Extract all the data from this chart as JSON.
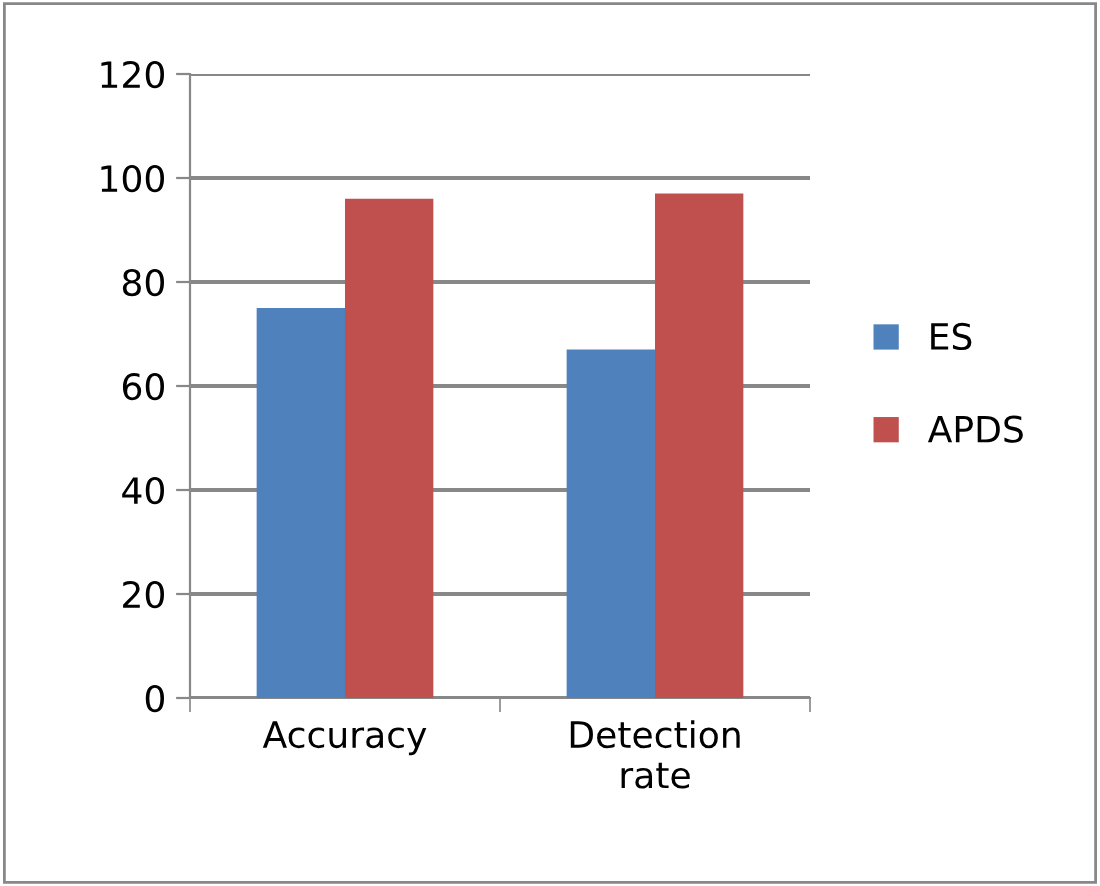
{
  "chart_data": {
    "type": "bar",
    "categories": [
      "Accuracy",
      "Detection\nrate"
    ],
    "series": [
      {
        "name": "ES",
        "color": "#4f81bd",
        "values": [
          75,
          67
        ]
      },
      {
        "name": "APDS",
        "color": "#c0504d",
        "values": [
          96,
          97
        ]
      }
    ],
    "ylim": [
      0,
      120
    ],
    "yticks": [
      0,
      20,
      40,
      60,
      80,
      100,
      120
    ],
    "grid": "y",
    "legend": "right"
  }
}
